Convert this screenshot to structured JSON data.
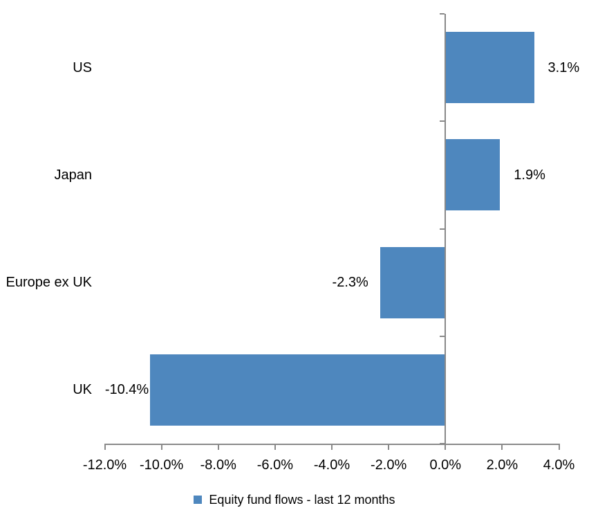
{
  "chart_data": {
    "type": "bar",
    "orientation": "horizontal",
    "title": "",
    "categories": [
      "US",
      "Japan",
      "Europe ex UK",
      "UK"
    ],
    "series": [
      {
        "name": "Equity fund flows - last 12 months",
        "values": [
          3.1,
          1.9,
          -2.3,
          -10.4
        ],
        "data_labels": [
          "3.1%",
          "1.9%",
          "-2.3%",
          "-10.4%"
        ],
        "color": "#4E87BE"
      }
    ],
    "xlim": [
      -12,
      4
    ],
    "x_tick_step": 2,
    "x_tick_labels": [
      "-12.0%",
      "-10.0%",
      "-8.0%",
      "-6.0%",
      "-4.0%",
      "-2.0%",
      "0.0%",
      "2.0%",
      "4.0%"
    ],
    "grid": false,
    "legend_position": "bottom",
    "axis_color": "#898989",
    "text_color": "#000000",
    "background_color": "#FFFFFF"
  },
  "legend": {
    "swatch_color": "#4E87BE",
    "label": "Equity fund flows - last 12 months"
  }
}
